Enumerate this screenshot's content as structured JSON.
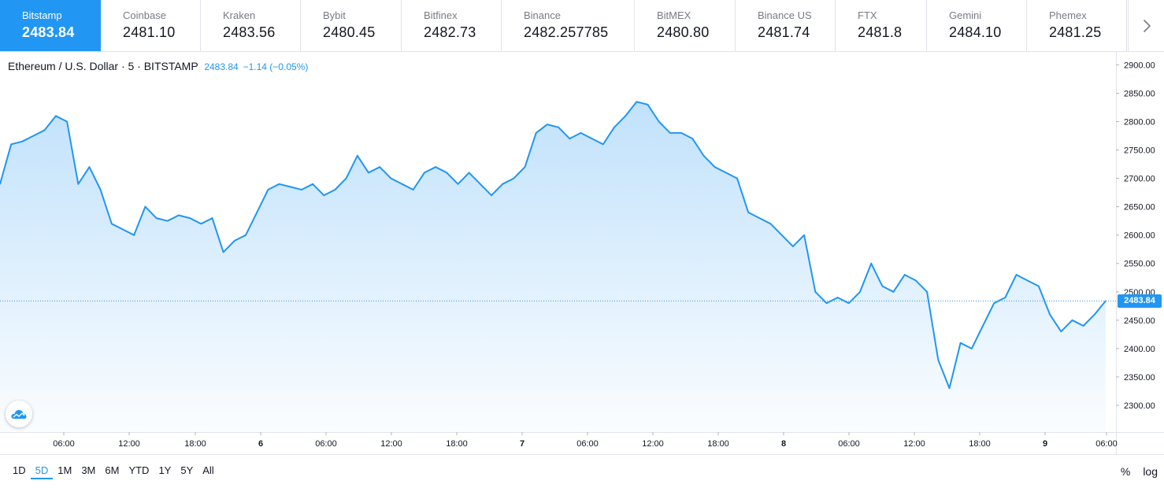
{
  "exchanges": [
    {
      "name": "Bitstamp",
      "price": "2483.84",
      "active": true
    },
    {
      "name": "Coinbase",
      "price": "2481.10"
    },
    {
      "name": "Kraken",
      "price": "2483.56"
    },
    {
      "name": "Bybit",
      "price": "2480.45"
    },
    {
      "name": "Bitfinex",
      "price": "2482.73"
    },
    {
      "name": "Binance",
      "price": "2482.257785"
    },
    {
      "name": "BitMEX",
      "price": "2480.80"
    },
    {
      "name": "Binance US",
      "price": "2481.74"
    },
    {
      "name": "FTX",
      "price": "2481.8"
    },
    {
      "name": "Gemini",
      "price": "2484.10"
    },
    {
      "name": "Phemex",
      "price": "2481.25"
    }
  ],
  "nav": {
    "next_icon": "chevron-right-icon"
  },
  "legend": {
    "symbol": "Ethereum / U.S. Dollar · 5 · BITSTAMP",
    "last": "2483.84",
    "change": "−1.14 (−0.05%)"
  },
  "price_badge": "2483.84",
  "logo_icon": "tradingview-cloud-icon",
  "colors": {
    "accent": "#2196f3",
    "grid_text": "#131722",
    "axis_border": "#e0e3eb"
  },
  "chart_data": {
    "type": "area",
    "title": "Ethereum / U.S. Dollar",
    "interval": "5",
    "current_price": 2483.84,
    "y_axis_ticks": [
      "2900.00",
      "2850.00",
      "2800.00",
      "2750.00",
      "2700.00",
      "2650.00",
      "2600.00",
      "2550.00",
      "2500.00",
      "2450.00",
      "2400.00",
      "2350.00",
      "2300.00"
    ],
    "x_axis_ticks": [
      "06:00",
      "12:00",
      "18:00",
      "6",
      "06:00",
      "12:00",
      "18:00",
      "7",
      "06:00",
      "12:00",
      "18:00",
      "8",
      "06:00",
      "12:00",
      "18:00",
      "9",
      "06:00"
    ],
    "series": [
      {
        "x": [
          "5 03:00",
          "5 04:00",
          "5 05:00",
          "5 06:00",
          "5 07:00",
          "5 08:00",
          "5 09:00",
          "5 10:00",
          "5 11:00",
          "5 12:00",
          "5 13:00",
          "5 14:00",
          "5 15:00",
          "5 16:00",
          "5 17:00",
          "5 18:00",
          "5 19:00",
          "5 20:00",
          "5 21:00",
          "5 22:00",
          "5 23:00",
          "6 00:00",
          "6 01:00",
          "6 02:00",
          "6 03:00",
          "6 04:00",
          "6 05:00",
          "6 06:00",
          "6 07:00",
          "6 08:00",
          "6 09:00",
          "6 10:00",
          "6 11:00",
          "6 12:00",
          "6 13:00",
          "6 14:00",
          "6 15:00",
          "6 16:00",
          "6 17:00",
          "6 18:00",
          "6 19:00",
          "6 20:00",
          "6 21:00",
          "6 22:00",
          "6 23:00",
          "7 00:00",
          "7 01:00",
          "7 02:00",
          "7 03:00",
          "7 04:00",
          "7 05:00",
          "7 06:00",
          "7 07:00",
          "7 08:00",
          "7 09:00",
          "7 10:00",
          "7 11:00",
          "7 12:00",
          "7 13:00",
          "7 14:00",
          "7 15:00",
          "7 16:00",
          "7 17:00",
          "7 18:00",
          "7 19:00",
          "7 20:00",
          "7 21:00",
          "7 22:00",
          "7 23:00",
          "8 00:00",
          "8 01:00",
          "8 02:00",
          "8 03:00",
          "8 04:00",
          "8 05:00",
          "8 06:00",
          "8 07:00",
          "8 08:00",
          "8 09:00",
          "8 10:00",
          "8 11:00",
          "8 12:00",
          "8 13:00",
          "8 14:00",
          "8 15:00",
          "8 16:00",
          "8 17:00",
          "8 18:00",
          "8 19:00",
          "8 20:00",
          "8 21:00",
          "8 22:00",
          "8 23:00",
          "9 00:00",
          "9 01:00",
          "9 02:00",
          "9 03:00",
          "9 04:00",
          "9 05:00",
          "9 06:00"
        ],
        "values": [
          2690,
          2760,
          2765,
          2775,
          2785,
          2810,
          2800,
          2690,
          2720,
          2680,
          2620,
          2610,
          2600,
          2650,
          2630,
          2625,
          2635,
          2630,
          2620,
          2630,
          2570,
          2590,
          2600,
          2640,
          2680,
          2690,
          2685,
          2680,
          2690,
          2670,
          2680,
          2700,
          2740,
          2710,
          2720,
          2700,
          2690,
          2680,
          2710,
          2720,
          2710,
          2690,
          2710,
          2690,
          2670,
          2690,
          2700,
          2720,
          2780,
          2795,
          2790,
          2770,
          2780,
          2770,
          2760,
          2790,
          2810,
          2835,
          2830,
          2800,
          2780,
          2780,
          2770,
          2740,
          2720,
          2710,
          2700,
          2640,
          2630,
          2620,
          2600,
          2580,
          2600,
          2500,
          2480,
          2490,
          2480,
          2500,
          2550,
          2510,
          2500,
          2530,
          2520,
          2500,
          2380,
          2330,
          2410,
          2400,
          2440,
          2480,
          2490,
          2530,
          2520,
          2510,
          2460,
          2430,
          2450,
          2440,
          2460,
          2484
        ]
      }
    ],
    "ylim": [
      2250,
      2920
    ],
    "xlabel": "",
    "ylabel": "",
    "grid": false,
    "log_scale": false
  },
  "ranges": [
    "1D",
    "5D",
    "1M",
    "3M",
    "6M",
    "YTD",
    "1Y",
    "5Y",
    "All"
  ],
  "active_range": "5D",
  "options": {
    "percent": "%",
    "log": "log"
  }
}
